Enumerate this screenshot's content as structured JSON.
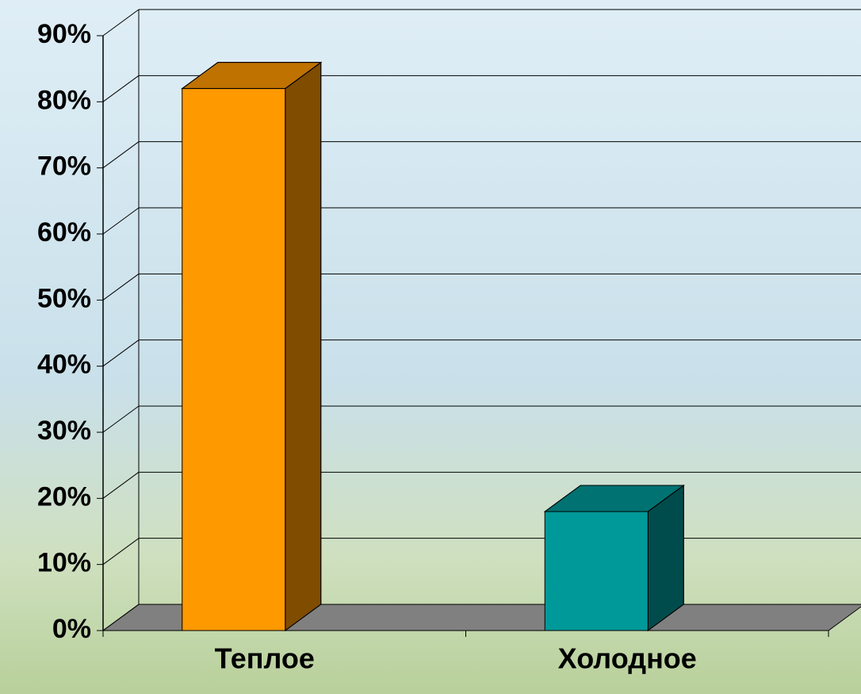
{
  "chart_data": {
    "type": "bar3d",
    "categories": [
      "Теплое",
      "Холодное"
    ],
    "values": [
      82,
      18
    ],
    "colors": [
      "#ff9900",
      "#009999"
    ],
    "ylim": [
      0,
      90
    ],
    "yticks": [
      {
        "value": 0,
        "label": "0%"
      },
      {
        "value": 10,
        "label": "10%"
      },
      {
        "value": 20,
        "label": "20%"
      },
      {
        "value": 30,
        "label": "30%"
      },
      {
        "value": 40,
        "label": "40%"
      },
      {
        "value": 50,
        "label": "50%"
      },
      {
        "value": 60,
        "label": "60%"
      },
      {
        "value": 70,
        "label": "70%"
      },
      {
        "value": 80,
        "label": "80%"
      },
      {
        "value": 90,
        "label": "90%"
      }
    ],
    "grid": true
  }
}
